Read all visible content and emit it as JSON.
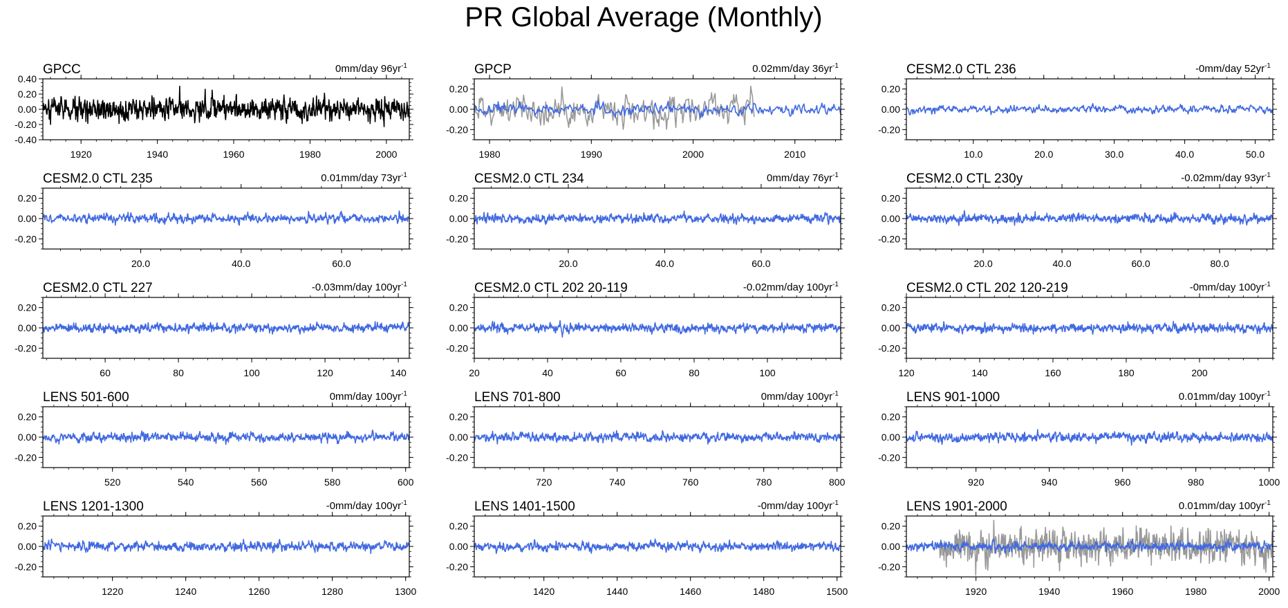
{
  "figure": {
    "title": "PR Global Average (Monthly)"
  },
  "colors": {
    "model": "#4169e1",
    "obs": "#000000",
    "overlay": "#999999",
    "axis": "#000000"
  },
  "chart_data": [
    {
      "type": "line",
      "title": "GPCC",
      "trend_label": "0mm/day 96yr",
      "trend_sup": "-1",
      "xlim": [
        1910,
        2006
      ],
      "xticks": [
        1920,
        1940,
        1960,
        1980,
        2000
      ],
      "xtick_labels": [
        "1920",
        "1940",
        "1960",
        "1980",
        "2000"
      ],
      "ylim": [
        -0.4,
        0.4
      ],
      "yticks": [
        0.4,
        0.2,
        0,
        -0.2,
        -0.4
      ],
      "ytick_labels": [
        "0.40",
        "0.20",
        "0.00",
        "-0.20",
        "-0.40"
      ],
      "series": [
        {
          "name": "GPCC",
          "color": "#000000",
          "amplitude": 0.12,
          "seed": 11,
          "npoints": 1150
        }
      ]
    },
    {
      "type": "line",
      "title": "GPCP",
      "trend_label": "0.02mm/day 36yr",
      "trend_sup": "-1",
      "xlim": [
        1978.5,
        2014.5
      ],
      "xticks": [
        1980,
        1990,
        2000,
        2010
      ],
      "xtick_labels": [
        "1980",
        "1990",
        "2000",
        "2010"
      ],
      "ylim": [
        -0.3,
        0.3
      ],
      "yticks": [
        0.2,
        0,
        -0.2
      ],
      "ytick_labels": [
        "0.20",
        "0.00",
        "-0.20"
      ],
      "series": [
        {
          "name": "overlay",
          "color": "#999999",
          "amplitude": 0.12,
          "seed": 21,
          "npoints": 330,
          "xrange": [
            1978.5,
            2006
          ]
        },
        {
          "name": "GPCP",
          "color": "#4169e1",
          "amplitude": 0.045,
          "seed": 22,
          "npoints": 430
        }
      ]
    },
    {
      "type": "line",
      "title": "CESM2.0 CTL 236",
      "trend_label": "-0mm/day 52yr",
      "trend_sup": "-1",
      "xlim": [
        0.5,
        52.5
      ],
      "xticks": [
        10,
        20,
        30,
        40,
        50
      ],
      "xtick_labels": [
        "10.0",
        "20.0",
        "30.0",
        "40.0",
        "50.0"
      ],
      "ylim": [
        -0.3,
        0.3
      ],
      "yticks": [
        0.2,
        0,
        -0.2
      ],
      "ytick_labels": [
        "0.20",
        "0.00",
        "-0.20"
      ],
      "series": [
        {
          "name": "model",
          "color": "#4169e1",
          "amplitude": 0.03,
          "seed": 31,
          "npoints": 620
        }
      ]
    },
    {
      "type": "line",
      "title": "CESM2.0 CTL 235",
      "trend_label": "0.01mm/day 73yr",
      "trend_sup": "-1",
      "xlim": [
        0.5,
        73.5
      ],
      "xticks": [
        20,
        40,
        60
      ],
      "xtick_labels": [
        "20.0",
        "40.0",
        "60.0"
      ],
      "ylim": [
        -0.3,
        0.3
      ],
      "yticks": [
        0.2,
        0,
        -0.2
      ],
      "ytick_labels": [
        "0.20",
        "0.00",
        "-0.20"
      ],
      "series": [
        {
          "name": "model",
          "color": "#4169e1",
          "amplitude": 0.035,
          "seed": 41,
          "npoints": 870
        }
      ]
    },
    {
      "type": "line",
      "title": "CESM2.0 CTL 234",
      "trend_label": "0mm/day 76yr",
      "trend_sup": "-1",
      "xlim": [
        0.5,
        76.5
      ],
      "xticks": [
        20,
        40,
        60
      ],
      "xtick_labels": [
        "20.0",
        "40.0",
        "60.0"
      ],
      "ylim": [
        -0.3,
        0.3
      ],
      "yticks": [
        0.2,
        0,
        -0.2
      ],
      "ytick_labels": [
        "0.20",
        "0.00",
        "-0.20"
      ],
      "series": [
        {
          "name": "model",
          "color": "#4169e1",
          "amplitude": 0.035,
          "seed": 51,
          "npoints": 900
        }
      ]
    },
    {
      "type": "line",
      "title": "CESM2.0 CTL 230y",
      "trend_label": "-0.02mm/day 93yr",
      "trend_sup": "-1",
      "xlim": [
        0.5,
        93.5
      ],
      "xticks": [
        20,
        40,
        60,
        80
      ],
      "xtick_labels": [
        "20.0",
        "40.0",
        "60.0",
        "80.0"
      ],
      "ylim": [
        -0.3,
        0.3
      ],
      "yticks": [
        0.2,
        0,
        -0.2
      ],
      "ytick_labels": [
        "0.20",
        "0.00",
        "-0.20"
      ],
      "series": [
        {
          "name": "model",
          "color": "#4169e1",
          "amplitude": 0.035,
          "seed": 61,
          "npoints": 1000
        }
      ]
    },
    {
      "type": "line",
      "title": "CESM2.0 CTL 227",
      "trend_label": "-0.03mm/day 100yr",
      "trend_sup": "-1",
      "xlim": [
        43,
        143
      ],
      "xticks": [
        60,
        80,
        100,
        120,
        140
      ],
      "xtick_labels": [
        "60",
        "80",
        "100",
        "120",
        "140"
      ],
      "ylim": [
        -0.3,
        0.3
      ],
      "yticks": [
        0.2,
        0,
        -0.2
      ],
      "ytick_labels": [
        "0.20",
        "0.00",
        "-0.20"
      ],
      "series": [
        {
          "name": "model",
          "color": "#4169e1",
          "amplitude": 0.035,
          "seed": 71,
          "npoints": 1000
        }
      ]
    },
    {
      "type": "line",
      "title": "CESM2.0 CTL 202 20-119",
      "trend_label": "-0.02mm/day 100yr",
      "trend_sup": "-1",
      "xlim": [
        20,
        120
      ],
      "xticks": [
        20,
        40,
        60,
        80,
        100
      ],
      "xtick_labels": [
        "20",
        "40",
        "60",
        "80",
        "100"
      ],
      "ylim": [
        -0.3,
        0.3
      ],
      "yticks": [
        0.2,
        0,
        -0.2
      ],
      "ytick_labels": [
        "0.20",
        "0.00",
        "-0.20"
      ],
      "series": [
        {
          "name": "model",
          "color": "#4169e1",
          "amplitude": 0.035,
          "seed": 81,
          "npoints": 1000
        }
      ]
    },
    {
      "type": "line",
      "title": "CESM2.0 CTL 202 120-219",
      "trend_label": "-0mm/day 100yr",
      "trend_sup": "-1",
      "xlim": [
        120,
        220
      ],
      "xticks": [
        120,
        140,
        160,
        180,
        200
      ],
      "xtick_labels": [
        "120",
        "140",
        "160",
        "180",
        "200"
      ],
      "ylim": [
        -0.3,
        0.3
      ],
      "yticks": [
        0.2,
        0,
        -0.2
      ],
      "ytick_labels": [
        "0.20",
        "0.00",
        "-0.20"
      ],
      "series": [
        {
          "name": "model",
          "color": "#4169e1",
          "amplitude": 0.035,
          "seed": 91,
          "npoints": 1000
        }
      ]
    },
    {
      "type": "line",
      "title": "LENS 501-600",
      "trend_label": "0mm/day 100yr",
      "trend_sup": "-1",
      "xlim": [
        501,
        601
      ],
      "xticks": [
        520,
        540,
        560,
        580,
        600
      ],
      "xtick_labels": [
        "520",
        "540",
        "560",
        "580",
        "600"
      ],
      "ylim": [
        -0.3,
        0.3
      ],
      "yticks": [
        0.2,
        0,
        -0.2
      ],
      "ytick_labels": [
        "0.20",
        "0.00",
        "-0.20"
      ],
      "series": [
        {
          "name": "model",
          "color": "#4169e1",
          "amplitude": 0.035,
          "seed": 101,
          "npoints": 1000
        }
      ]
    },
    {
      "type": "line",
      "title": "LENS 701-800",
      "trend_label": "0mm/day 100yr",
      "trend_sup": "-1",
      "xlim": [
        701,
        801
      ],
      "xticks": [
        720,
        740,
        760,
        780,
        800
      ],
      "xtick_labels": [
        "720",
        "740",
        "760",
        "780",
        "800"
      ],
      "ylim": [
        -0.3,
        0.3
      ],
      "yticks": [
        0.2,
        0,
        -0.2
      ],
      "ytick_labels": [
        "0.20",
        "0.00",
        "-0.20"
      ],
      "series": [
        {
          "name": "model",
          "color": "#4169e1",
          "amplitude": 0.035,
          "seed": 111,
          "npoints": 1000
        }
      ]
    },
    {
      "type": "line",
      "title": "LENS 901-1000",
      "trend_label": "0.01mm/day 100yr",
      "trend_sup": "-1",
      "xlim": [
        901,
        1001
      ],
      "xticks": [
        920,
        940,
        960,
        980,
        1000
      ],
      "xtick_labels": [
        "920",
        "940",
        "960",
        "980",
        "1000"
      ],
      "ylim": [
        -0.3,
        0.3
      ],
      "yticks": [
        0.2,
        0,
        -0.2
      ],
      "ytick_labels": [
        "0.20",
        "0.00",
        "-0.20"
      ],
      "series": [
        {
          "name": "model",
          "color": "#4169e1",
          "amplitude": 0.035,
          "seed": 121,
          "npoints": 1000
        }
      ]
    },
    {
      "type": "line",
      "title": "LENS 1201-1300",
      "trend_label": "-0mm/day 100yr",
      "trend_sup": "-1",
      "xlim": [
        1201,
        1301
      ],
      "xticks": [
        1220,
        1240,
        1260,
        1280,
        1300
      ],
      "xtick_labels": [
        "1220",
        "1240",
        "1260",
        "1280",
        "1300"
      ],
      "ylim": [
        -0.3,
        0.3
      ],
      "yticks": [
        0.2,
        0,
        -0.2
      ],
      "ytick_labels": [
        "0.20",
        "0.00",
        "-0.20"
      ],
      "series": [
        {
          "name": "model",
          "color": "#4169e1",
          "amplitude": 0.035,
          "seed": 131,
          "npoints": 1000
        }
      ]
    },
    {
      "type": "line",
      "title": "LENS 1401-1500",
      "trend_label": "-0mm/day 100yr",
      "trend_sup": "-1",
      "xlim": [
        1401,
        1501
      ],
      "xticks": [
        1420,
        1440,
        1460,
        1480,
        1500
      ],
      "xtick_labels": [
        "1420",
        "1440",
        "1460",
        "1480",
        "1500"
      ],
      "ylim": [
        -0.3,
        0.3
      ],
      "yticks": [
        0.2,
        0,
        -0.2
      ],
      "ytick_labels": [
        "0.20",
        "0.00",
        "-0.20"
      ],
      "series": [
        {
          "name": "model",
          "color": "#4169e1",
          "amplitude": 0.035,
          "seed": 141,
          "npoints": 1000
        }
      ]
    },
    {
      "type": "line",
      "title": "LENS 1901-2000",
      "trend_label": "0.01mm/day 100yr",
      "trend_sup": "-1",
      "xlim": [
        1901,
        2001
      ],
      "xticks": [
        1920,
        1940,
        1960,
        1980,
        2000
      ],
      "xtick_labels": [
        "1920",
        "1940",
        "1960",
        "1980",
        "2000"
      ],
      "ylim": [
        -0.3,
        0.3
      ],
      "yticks": [
        0.2,
        0,
        -0.2
      ],
      "ytick_labels": [
        "0.20",
        "0.00",
        "-0.20"
      ],
      "series": [
        {
          "name": "overlay",
          "color": "#999999",
          "amplitude": 0.13,
          "seed": 151,
          "npoints": 1000,
          "xrange": [
            1910,
            2001
          ]
        },
        {
          "name": "model",
          "color": "#4169e1",
          "amplitude": 0.035,
          "seed": 152,
          "npoints": 1000
        }
      ]
    }
  ]
}
